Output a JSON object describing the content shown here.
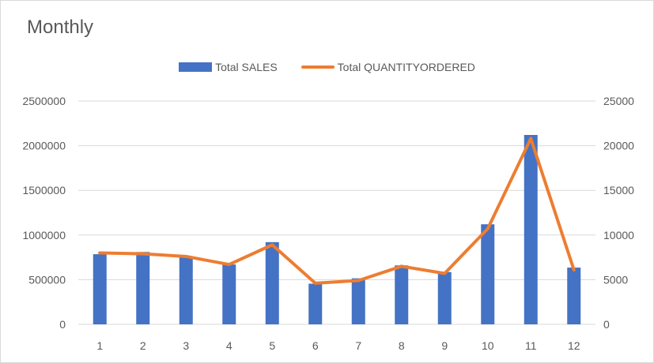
{
  "chart_data": {
    "type": "bar",
    "title": "Monthly",
    "categories": [
      "1",
      "2",
      "3",
      "4",
      "5",
      "6",
      "7",
      "8",
      "9",
      "10",
      "11",
      "12"
    ],
    "series": [
      {
        "name": "Total SALES",
        "type": "bar",
        "axis": "left",
        "values": [
          785000,
          810000,
          755000,
          670000,
          920000,
          455000,
          515000,
          660000,
          585000,
          1120000,
          2120000,
          635000
        ]
      },
      {
        "name": "Total QUANTITYORDERED",
        "type": "line",
        "axis": "right",
        "values": [
          8000,
          7900,
          7600,
          6700,
          8900,
          4600,
          4900,
          6500,
          5700,
          10700,
          20800,
          6100
        ]
      }
    ],
    "y_left": {
      "min": 0,
      "max": 2500000,
      "ticks": [
        "0",
        "500000",
        "1000000",
        "1500000",
        "2000000",
        "2500000"
      ]
    },
    "y_right": {
      "min": 0,
      "max": 25000,
      "ticks": [
        "0",
        "5000",
        "10000",
        "15000",
        "20000",
        "25000"
      ]
    },
    "xlabel": "",
    "ylabel": "",
    "grid": true,
    "legend_position": "top",
    "colors": {
      "bar": "#4472c4",
      "line": "#ed7d31",
      "grid": "#d9d9d9",
      "text": "#595959"
    }
  }
}
